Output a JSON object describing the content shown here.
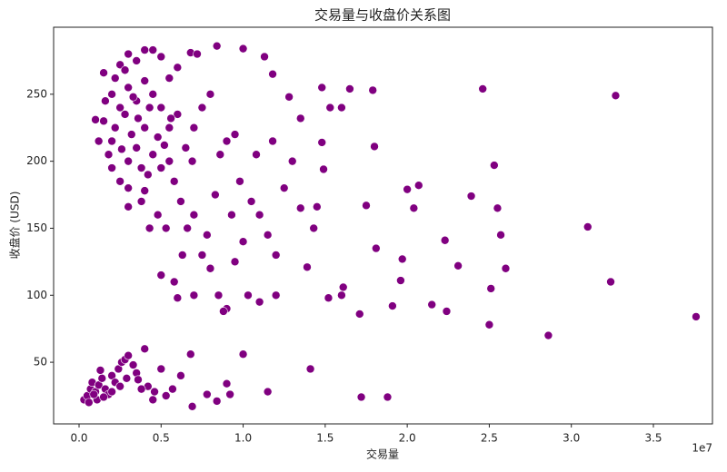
{
  "chart_data": {
    "type": "scatter",
    "title": "交易量与收盘价关系图",
    "x_label": "交易量",
    "y_label": "收盘价 (USD)",
    "x_offset_label": "1e7",
    "color": "#800080",
    "xlim": [
      -1550000,
      38600000
    ],
    "ylim": [
      4,
      300
    ],
    "xticks": [
      {
        "value": 0,
        "label": "0.0"
      },
      {
        "value": 5000000,
        "label": "0.5"
      },
      {
        "value": 10000000,
        "label": "1.0"
      },
      {
        "value": 15000000,
        "label": "1.5"
      },
      {
        "value": 20000000,
        "label": "2.0"
      },
      {
        "value": 25000000,
        "label": "2.5"
      },
      {
        "value": 30000000,
        "label": "3.0"
      },
      {
        "value": 35000000,
        "label": "3.5"
      }
    ],
    "yticks": [
      50,
      100,
      150,
      200,
      250
    ],
    "series": [
      {
        "name": "收盘价",
        "x": [
          1000000,
          1500000,
          2000000,
          2500000,
          3000000,
          3500000,
          4000000,
          4500000,
          5000000,
          5500000,
          6000000,
          6800000,
          7200000,
          8400000,
          10000000,
          11300000,
          11800000,
          1500000,
          2000000,
          2500000,
          3000000,
          3500000,
          4000000,
          4500000,
          5000000,
          5500000,
          6000000,
          3000000,
          3500000,
          4000000,
          4500000,
          5000000,
          2000000,
          2500000,
          3000000,
          3800000,
          4200000,
          5500000,
          6500000,
          7000000,
          7500000,
          8000000,
          9000000,
          9500000,
          1200000,
          1800000,
          2200000,
          2800000,
          3200000,
          3600000,
          4300000,
          4800000,
          5200000,
          5800000,
          6200000,
          6600000,
          7000000,
          7500000,
          8000000,
          8500000,
          9000000,
          9500000,
          10000000,
          10500000,
          11000000,
          11500000,
          12000000,
          12500000,
          13000000,
          13500000,
          12000000,
          11000000,
          10300000,
          8800000,
          7000000,
          6000000,
          5800000,
          5000000,
          4300000,
          5300000,
          4800000,
          6300000,
          7800000,
          8300000,
          9300000,
          10800000,
          11800000,
          12800000,
          13500000,
          14300000,
          3000000,
          4000000,
          2200000,
          2800000,
          3300000,
          2600000,
          1600000,
          3800000,
          5600000,
          6900000,
          8600000,
          9800000,
          300000,
          500000,
          700000,
          800000,
          1000000,
          1200000,
          1400000,
          1600000,
          1800000,
          2000000,
          2200000,
          2400000,
          2600000,
          2800000,
          3000000,
          3300000,
          3500000,
          3600000,
          4000000,
          4200000,
          4500000,
          5000000,
          5300000,
          5700000,
          6200000,
          1100000,
          1500000,
          600000,
          2000000,
          2500000,
          1300000,
          900000,
          2900000,
          3800000,
          4600000,
          37600000,
          32700000,
          31000000,
          32400000,
          28600000,
          24600000,
          25000000,
          25100000,
          25700000,
          26000000,
          25300000,
          25500000,
          23900000,
          23100000,
          22400000,
          22300000,
          21500000,
          20700000,
          20000000,
          20400000,
          19700000,
          19600000,
          19100000,
          18800000,
          17200000,
          17100000,
          18100000,
          17900000,
          18000000,
          17500000,
          16500000,
          15300000,
          16000000,
          14800000,
          14100000,
          16100000,
          16000000,
          15200000,
          14800000,
          14900000,
          14500000,
          13900000,
          11500000,
          10000000,
          9200000,
          9000000,
          8400000,
          7800000,
          6800000,
          6900000
        ],
        "values": [
          231,
          266,
          250,
          272,
          280,
          275,
          283,
          283,
          278,
          262,
          270,
          281,
          280,
          286,
          284,
          278,
          265,
          230,
          215,
          240,
          255,
          245,
          260,
          250,
          240,
          225,
          235,
          200,
          210,
          225,
          205,
          195,
          195,
          185,
          180,
          170,
          190,
          200,
          210,
          225,
          240,
          250,
          215,
          220,
          215,
          205,
          225,
          235,
          220,
          232,
          240,
          218,
          212,
          185,
          170,
          150,
          160,
          130,
          120,
          100,
          90,
          125,
          140,
          170,
          160,
          145,
          130,
          180,
          200,
          165,
          100,
          95,
          100,
          88,
          100,
          98,
          110,
          115,
          150,
          150,
          160,
          130,
          145,
          175,
          160,
          205,
          215,
          248,
          232,
          150,
          166,
          178,
          262,
          268,
          248,
          209,
          245,
          195,
          232,
          200,
          205,
          185,
          22,
          25,
          30,
          35,
          28,
          33,
          38,
          30,
          26,
          40,
          35,
          45,
          50,
          52,
          55,
          48,
          42,
          37,
          60,
          32,
          22,
          45,
          25,
          30,
          40,
          22,
          24,
          20,
          28,
          32,
          44,
          26,
          38,
          30,
          28,
          84,
          249,
          151,
          110,
          70,
          254,
          78,
          105,
          145,
          120,
          197,
          165,
          174,
          122,
          88,
          141,
          93,
          182,
          179,
          165,
          127,
          111,
          92,
          24,
          24,
          86,
          135,
          253,
          211,
          167,
          254,
          240,
          240,
          255,
          45,
          106,
          100,
          98,
          214,
          194,
          166,
          121,
          28,
          56,
          26,
          34,
          21,
          26,
          56,
          17
        ]
      }
    ]
  }
}
